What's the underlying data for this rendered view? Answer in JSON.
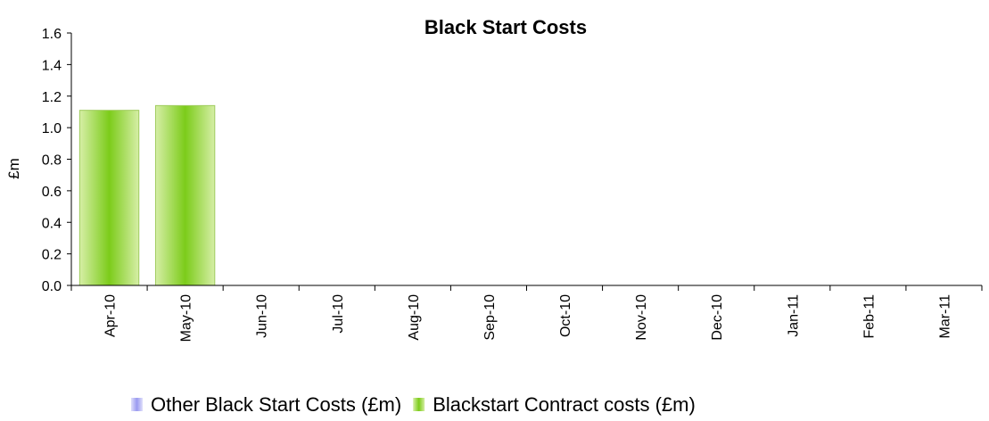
{
  "chart_data": {
    "type": "bar",
    "title": "Black Start Costs",
    "ylabel": "£m",
    "xlabel": "",
    "ylim": [
      0,
      1.6
    ],
    "yticks": [
      "0.0",
      "0.2",
      "0.4",
      "0.6",
      "0.8",
      "1.0",
      "1.2",
      "1.4",
      "1.6"
    ],
    "categories": [
      "Apr-10",
      "May-10",
      "Jun-10",
      "Jul-10",
      "Aug-10",
      "Sep-10",
      "Oct-10",
      "Nov-10",
      "Dec-10",
      "Jan-11",
      "Feb-11",
      "Mar-11"
    ],
    "stacked": true,
    "series": [
      {
        "name": "Other Black Start Costs (£m)",
        "color": "#9a9af0",
        "values": [
          0,
          0,
          0,
          0,
          0,
          0,
          0,
          0,
          0,
          0,
          0,
          0
        ]
      },
      {
        "name": "Blackstart Contract costs (£m)",
        "color": "#7ccc1a",
        "values": [
          1.11,
          1.14,
          null,
          null,
          null,
          null,
          null,
          null,
          null,
          null,
          null,
          null
        ]
      }
    ],
    "grid": false,
    "legend_position": "bottom"
  }
}
